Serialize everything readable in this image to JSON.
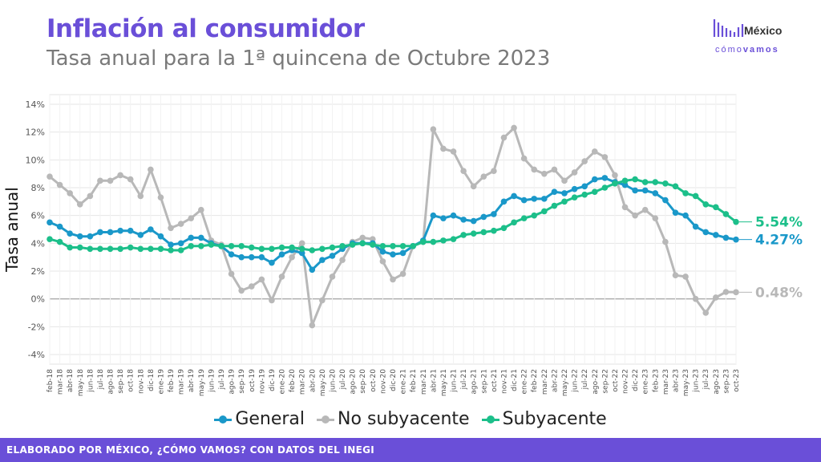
{
  "header": {
    "title": "Inflación al consumidor",
    "subtitle": "Tasa anual para la 1ª quincena de Octubre 2023"
  },
  "logo": {
    "line1": "México",
    "line2a": "cómo",
    "line2b": "vamos",
    "icon": "bar-wave-icon"
  },
  "footer": {
    "text": "ELABORADO POR MÉXICO, ¿CÓMO VAMOS? CON DATOS DEL INEGI"
  },
  "colors": {
    "accent": "#6a4fd8",
    "general": "#1a98c9",
    "no_subyacente": "#b8b8b8",
    "subyacente": "#1cbf8a",
    "grid": "#e6e6e6",
    "zero": "#9a9a9a"
  },
  "chart_data": {
    "type": "line",
    "ylabel": "Tasa anual",
    "ylim": [
      -4,
      14
    ],
    "yticks": [
      -4,
      -2,
      0,
      2,
      4,
      6,
      8,
      10,
      12,
      14
    ],
    "ytick_labels": [
      "-4%",
      "-2%",
      "0%",
      "2%",
      "4%",
      "6%",
      "8%",
      "10%",
      "12%",
      "14%"
    ],
    "grid": true,
    "legend_position": "bottom",
    "categories": [
      "feb-18",
      "mar-18",
      "abr-18",
      "may-18",
      "jun-18",
      "jul-18",
      "ago-18",
      "sep-18",
      "oct-18",
      "nov-18",
      "dic-18",
      "ene-19",
      "feb-19",
      "mar-19",
      "abr-19",
      "may-19",
      "jun-19",
      "jul-19",
      "ago-19",
      "sep-19",
      "oct-19",
      "nov-19",
      "dic-19",
      "ene-20",
      "feb-20",
      "mar-20",
      "abr-20",
      "may-20",
      "jun-20",
      "jul-20",
      "ago-20",
      "sep-20",
      "oct-20",
      "nov-20",
      "dic-20",
      "ene-21",
      "feb-21",
      "mar-21",
      "abr-21",
      "may-21",
      "jun-21",
      "jul-21",
      "ago-21",
      "sep-21",
      "oct-21",
      "nov-21",
      "dic-21",
      "ene-22",
      "feb-22",
      "mar-22",
      "abr-22",
      "may-22",
      "jun-22",
      "jul-22",
      "ago-22",
      "sep-22",
      "oct-22",
      "nov-22",
      "dic-22",
      "ene-23",
      "feb-23",
      "mar-23",
      "abr-23",
      "may-23",
      "jun-23",
      "jul-23",
      "ago-23",
      "sep-23",
      "oct-23"
    ],
    "series": [
      {
        "name": "No subyacente",
        "color_key": "no_subyacente",
        "end_label": "0.48%",
        "values": [
          8.8,
          8.2,
          7.6,
          6.8,
          7.4,
          8.5,
          8.5,
          8.9,
          8.6,
          7.4,
          9.3,
          7.3,
          5.1,
          5.4,
          5.8,
          6.4,
          4.2,
          3.9,
          1.8,
          0.6,
          0.9,
          1.4,
          -0.1,
          1.6,
          3.0,
          4.0,
          -1.9,
          -0.1,
          1.6,
          2.8,
          4.1,
          4.4,
          4.3,
          2.7,
          1.4,
          1.8,
          3.8,
          4.1,
          12.2,
          10.8,
          10.6,
          9.2,
          8.1,
          8.8,
          9.2,
          11.6,
          12.3,
          10.1,
          9.3,
          9.0,
          9.3,
          8.5,
          9.1,
          9.9,
          10.6,
          10.2,
          8.9,
          6.6,
          6.0,
          6.4,
          5.8,
          4.1,
          1.7,
          1.6,
          0.0,
          -1.0,
          0.1,
          0.5,
          0.48
        ]
      },
      {
        "name": "General",
        "color_key": "general",
        "end_label": "4.27%",
        "values": [
          5.5,
          5.2,
          4.7,
          4.5,
          4.5,
          4.8,
          4.8,
          4.9,
          4.9,
          4.6,
          5.0,
          4.5,
          3.9,
          4.0,
          4.4,
          4.4,
          4.0,
          3.8,
          3.2,
          3.0,
          3.0,
          3.0,
          2.6,
          3.2,
          3.5,
          3.3,
          2.1,
          2.8,
          3.1,
          3.6,
          4.0,
          4.0,
          4.0,
          3.4,
          3.2,
          3.3,
          3.8,
          4.2,
          6.0,
          5.8,
          6.0,
          5.7,
          5.6,
          5.9,
          6.1,
          7.0,
          7.4,
          7.1,
          7.2,
          7.2,
          7.7,
          7.6,
          7.9,
          8.1,
          8.6,
          8.7,
          8.4,
          8.2,
          7.8,
          7.8,
          7.6,
          7.1,
          6.2,
          6.0,
          5.2,
          4.8,
          4.6,
          4.4,
          4.27
        ]
      },
      {
        "name": "Subyacente",
        "color_key": "subyacente",
        "end_label": "5.54%",
        "values": [
          4.3,
          4.1,
          3.7,
          3.7,
          3.6,
          3.6,
          3.6,
          3.6,
          3.7,
          3.6,
          3.6,
          3.6,
          3.5,
          3.5,
          3.8,
          3.8,
          3.9,
          3.8,
          3.8,
          3.8,
          3.7,
          3.6,
          3.6,
          3.7,
          3.7,
          3.6,
          3.5,
          3.6,
          3.7,
          3.8,
          3.9,
          4.0,
          3.9,
          3.8,
          3.8,
          3.8,
          3.8,
          4.1,
          4.1,
          4.2,
          4.3,
          4.6,
          4.7,
          4.8,
          4.9,
          5.1,
          5.5,
          5.8,
          6.0,
          6.3,
          6.7,
          7.0,
          7.3,
          7.5,
          7.7,
          8.0,
          8.3,
          8.5,
          8.6,
          8.4,
          8.4,
          8.3,
          8.1,
          7.6,
          7.4,
          6.8,
          6.6,
          6.1,
          5.54
        ]
      }
    ]
  }
}
